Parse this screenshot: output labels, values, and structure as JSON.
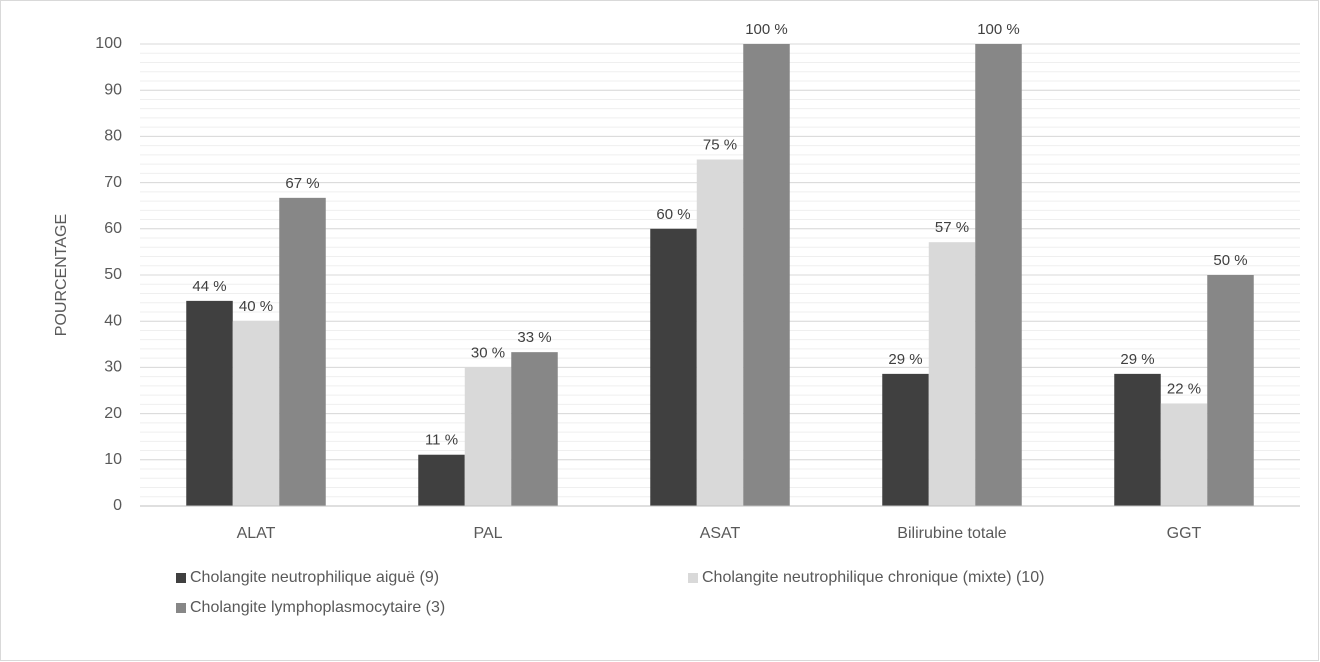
{
  "chart_data": {
    "type": "bar",
    "y_label": "POURCENTAGE",
    "categories": [
      "ALAT",
      "PAL",
      "ASAT",
      "Bilirubine totale",
      "GGT"
    ],
    "series": [
      {
        "name": "Cholangite neutrophilique aiguë (9)",
        "color": "#404040",
        "values": [
          44.4,
          11.1,
          60,
          28.6,
          28.6
        ],
        "value_labels": [
          "44 %",
          "11 %",
          "60 %",
          "29 %",
          "29 %"
        ]
      },
      {
        "name": "Cholangite neutrophilique chronique (mixte) (10)",
        "color": "#d9d9d9",
        "values": [
          40,
          30,
          75,
          57.1,
          22.2
        ],
        "value_labels": [
          "40 %",
          "30 %",
          "75 %",
          "57 %",
          "22 %"
        ]
      },
      {
        "name": "Cholangite lymphoplasmocytaire (3)",
        "color": "#878787",
        "values": [
          66.7,
          33.3,
          100,
          100,
          50
        ],
        "value_labels": [
          "67 %",
          "33 %",
          "100 %",
          "100 %",
          "50 %"
        ]
      }
    ],
    "ylim": [
      0,
      100
    ],
    "yticks": [
      0,
      10,
      20,
      30,
      40,
      50,
      60,
      70,
      80,
      90,
      100
    ],
    "grid": true,
    "minor_grid_step": 2,
    "legend": "bottom"
  }
}
